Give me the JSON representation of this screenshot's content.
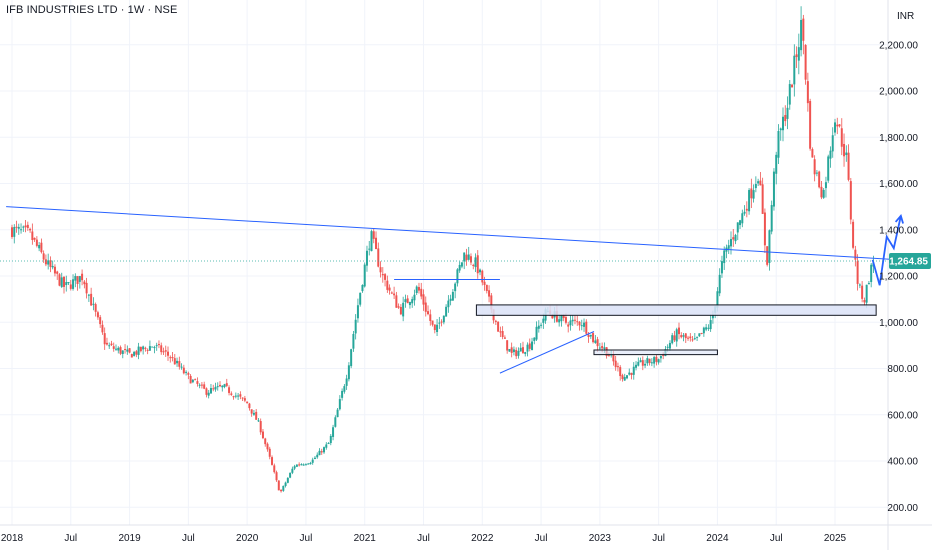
{
  "header": {
    "title": "IFB INDUSTRIES LTD · 1W · NSE"
  },
  "colors": {
    "up": "#26a69a",
    "down": "#ef5350",
    "trend": "#2962ff",
    "zone_fill": "#dbe2f7",
    "last_price_bg": "#26a69a"
  },
  "chart_data": {
    "type": "candlestick",
    "currency": "INR",
    "last_price": "1,264.85",
    "y_ticks": [
      "2,200.00",
      "2,000.00",
      "1,800.00",
      "1,600.00",
      "1,400.00",
      "1,200.00",
      "1,000.00",
      "800.00",
      "600.00",
      "400.00",
      "200.00"
    ],
    "y_tick_values": [
      2200,
      2000,
      1800,
      1600,
      1400,
      1200,
      1000,
      800,
      600,
      400,
      200
    ],
    "x_ticks": [
      {
        "label": "2018",
        "date": 2018.0
      },
      {
        "label": "Jul",
        "date": 2018.5
      },
      {
        "label": "2019",
        "date": 2019.0
      },
      {
        "label": "Jul",
        "date": 2019.5
      },
      {
        "label": "2020",
        "date": 2020.0
      },
      {
        "label": "Jul",
        "date": 2020.5
      },
      {
        "label": "2021",
        "date": 2021.0
      },
      {
        "label": "Jul",
        "date": 2021.5
      },
      {
        "label": "2022",
        "date": 2022.0
      },
      {
        "label": "Jul",
        "date": 2022.5
      },
      {
        "label": "2023",
        "date": 2023.0
      },
      {
        "label": "Jul",
        "date": 2023.5
      },
      {
        "label": "2024",
        "date": 2024.0
      },
      {
        "label": "Jul",
        "date": 2024.5
      },
      {
        "label": "2025",
        "date": 2025.0
      }
    ],
    "price_path": [
      [
        2018.0,
        1400
      ],
      [
        2018.15,
        1380
      ],
      [
        2018.3,
        1250
      ],
      [
        2018.45,
        1150
      ],
      [
        2018.6,
        1200
      ],
      [
        2018.8,
        900
      ],
      [
        2019.0,
        860
      ],
      [
        2019.2,
        900
      ],
      [
        2019.35,
        850
      ],
      [
        2019.5,
        760
      ],
      [
        2019.65,
        700
      ],
      [
        2019.8,
        720
      ],
      [
        2020.0,
        650
      ],
      [
        2020.1,
        560
      ],
      [
        2020.2,
        400
      ],
      [
        2020.28,
        260
      ],
      [
        2020.4,
        380
      ],
      [
        2020.55,
        400
      ],
      [
        2020.7,
        480
      ],
      [
        2020.85,
        780
      ],
      [
        2020.95,
        1100
      ],
      [
        2021.05,
        1380
      ],
      [
        2021.15,
        1200
      ],
      [
        2021.3,
        1050
      ],
      [
        2021.45,
        1150
      ],
      [
        2021.6,
        950
      ],
      [
        2021.75,
        1150
      ],
      [
        2021.85,
        1300
      ],
      [
        2021.95,
        1250
      ],
      [
        2022.05,
        1100
      ],
      [
        2022.15,
        950
      ],
      [
        2022.25,
        860
      ],
      [
        2022.4,
        900
      ],
      [
        2022.55,
        1050
      ],
      [
        2022.7,
        1000
      ],
      [
        2022.85,
        1000
      ],
      [
        2022.95,
        920
      ],
      [
        2023.05,
        880
      ],
      [
        2023.2,
        760
      ],
      [
        2023.35,
        820
      ],
      [
        2023.5,
        840
      ],
      [
        2023.65,
        950
      ],
      [
        2023.8,
        910
      ],
      [
        2023.95,
        1000
      ],
      [
        2024.05,
        1280
      ],
      [
        2024.2,
        1450
      ],
      [
        2024.35,
        1650
      ],
      [
        2024.42,
        1250
      ],
      [
        2024.5,
        1750
      ],
      [
        2024.6,
        1950
      ],
      [
        2024.72,
        2300
      ],
      [
        2024.8,
        1700
      ],
      [
        2024.9,
        1550
      ],
      [
        2025.0,
        1900
      ],
      [
        2025.1,
        1700
      ],
      [
        2025.15,
        1350
      ],
      [
        2025.2,
        1150
      ],
      [
        2025.25,
        1100
      ],
      [
        2025.3,
        1220
      ],
      [
        2025.33,
        1265
      ]
    ],
    "drawings": {
      "long_trendline": [
        [
          2017.95,
          1500
        ],
        [
          2025.55,
          1270
        ]
      ],
      "support_zone": [
        [
          2021.95,
          1075
        ],
        [
          2025.35,
          1030
        ]
      ],
      "resistance_2021": [
        [
          2021.25,
          1185
        ],
        [
          2022.15,
          1185
        ]
      ],
      "base_box": [
        [
          2022.95,
          880
        ],
        [
          2024.0,
          860
        ]
      ],
      "rising_support": [
        [
          2022.15,
          780
        ],
        [
          2022.95,
          960
        ]
      ],
      "projection": [
        [
          2025.32,
          1270
        ],
        [
          2025.38,
          1160
        ],
        [
          2025.44,
          1370
        ],
        [
          2025.5,
          1320
        ],
        [
          2025.56,
          1460
        ]
      ]
    }
  }
}
